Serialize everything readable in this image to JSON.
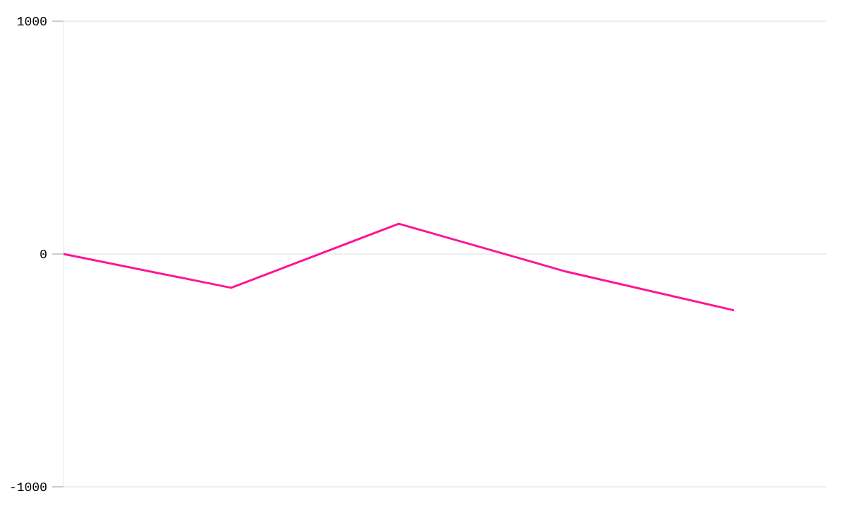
{
  "chart_data": {
    "type": "line",
    "categories": [
      null,
      null,
      null,
      null,
      null
    ],
    "series": [
      {
        "color": "#ff1493",
        "values": [
          0,
          -145,
          130,
          -76,
          -242
        ]
      }
    ],
    "ylim": [
      -1000,
      1000
    ],
    "yticks": [
      {
        "value": -1000,
        "label": "-1000"
      },
      {
        "value": 0,
        "label": "0"
      },
      {
        "value": 1000,
        "label": "1000"
      }
    ],
    "grid": "y",
    "marker": "none",
    "line_style": "solid"
  }
}
